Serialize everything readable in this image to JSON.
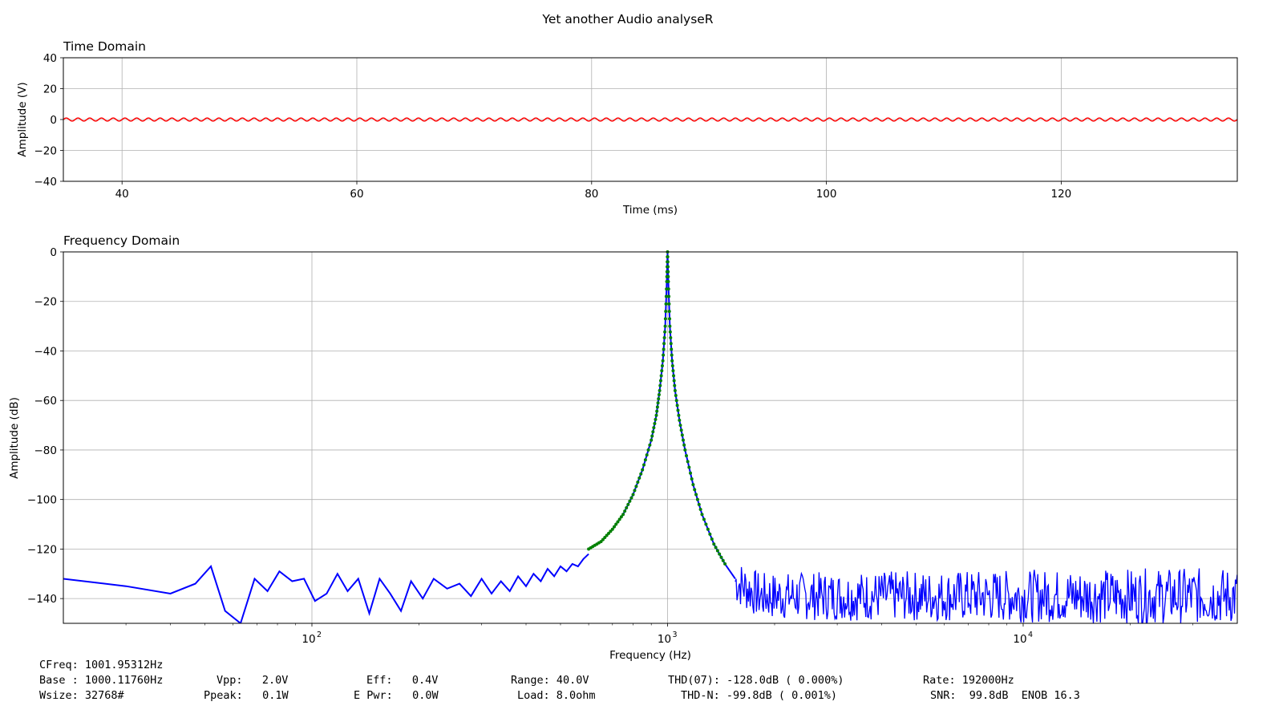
{
  "figure": {
    "title": "Yet another Audio analyseR"
  },
  "chart_data": [
    {
      "type": "line",
      "title": "Time Domain",
      "xlabel": "Time (ms)",
      "ylabel": "Amplitude (V)",
      "xlim": [
        35,
        135
      ],
      "ylim": [
        -40,
        40
      ],
      "xticks": [
        40,
        60,
        80,
        100,
        120
      ],
      "yticks": [
        40,
        20,
        0,
        -20,
        -40
      ],
      "ytick_labels": [
        "40",
        "20",
        "0",
        "−20",
        "−40"
      ],
      "grid": true,
      "series": [
        {
          "color": "#ff0000",
          "signal": "sine",
          "frequency_hz": 1000,
          "amplitude_v": 1.0
        }
      ]
    },
    {
      "type": "line",
      "title": "Frequency Domain",
      "xlabel": "Frequency (Hz)",
      "ylabel": "Amplitude (dB)",
      "xscale": "log",
      "xlim": [
        20,
        40000
      ],
      "ylim": [
        -150,
        0
      ],
      "xticks": [
        100,
        1000,
        10000
      ],
      "xtick_bases": [
        "10",
        "10",
        "10"
      ],
      "xtick_exponents": [
        "2",
        "3",
        "4"
      ],
      "yticks": [
        0,
        -20,
        -40,
        -60,
        -80,
        -100,
        -120,
        -140
      ],
      "ytick_labels": [
        "0",
        "−20",
        "−40",
        "−60",
        "−80",
        "−100",
        "−120",
        "−140"
      ],
      "grid": true,
      "series": [
        {
          "color": "#0000ff",
          "x": [
            20,
            30,
            40,
            47,
            52,
            57,
            63,
            69,
            75,
            81,
            88,
            95,
            102,
            110,
            118,
            126,
            135,
            145,
            155,
            166,
            178,
            190,
            205,
            220,
            240,
            260,
            280,
            300,
            320,
            340,
            360,
            380,
            400,
            420,
            440,
            460,
            480,
            500,
            520,
            540,
            560,
            580,
            600
          ],
          "y": [
            -132,
            -135,
            -138,
            -134,
            -127,
            -145,
            -158,
            -132,
            -137,
            -129,
            -133,
            -132,
            -141,
            -138,
            -130,
            -137,
            -132,
            -146,
            -132,
            -138,
            -145,
            -133,
            -140,
            -132,
            -136,
            -134,
            -139,
            -132,
            -138,
            -133,
            -137,
            -131,
            -135,
            -130,
            -133,
            -128,
            -131,
            -127,
            -129,
            -126,
            -127,
            -124,
            -122
          ]
        },
        {
          "color": "#0000ff",
          "x": [
            600,
            650,
            700,
            750,
            800,
            850,
            900,
            930,
            950,
            970,
            985,
            995,
            1000,
            1005,
            1015,
            1030,
            1050,
            1080,
            1120,
            1180,
            1250,
            1350,
            1450,
            1550
          ],
          "y": [
            -120,
            -117,
            -112,
            -106,
            -98,
            -88,
            -76,
            -66,
            -56,
            -44,
            -30,
            -12,
            0,
            -12,
            -30,
            -44,
            -56,
            -68,
            -80,
            -94,
            -106,
            -118,
            -126,
            -132
          ]
        },
        {
          "color": "#0000ff",
          "style": "noise",
          "x": [
            1550,
            40000
          ],
          "y_mean": -139,
          "y_range": [
            -150,
            -129
          ]
        },
        {
          "color": "#008000",
          "style": "markers",
          "x": [
            600,
            650,
            700,
            750,
            800,
            850,
            900,
            930,
            950,
            970,
            985,
            995,
            1000,
            1005,
            1015,
            1030,
            1050,
            1080,
            1120,
            1180,
            1250,
            1350,
            1450
          ],
          "y": [
            -120,
            -117,
            -112,
            -106,
            -98,
            -88,
            -76,
            -66,
            -56,
            -44,
            -30,
            -12,
            0,
            -12,
            -30,
            -44,
            -56,
            -68,
            -80,
            -94,
            -106,
            -118,
            -126
          ]
        }
      ]
    }
  ],
  "stats": {
    "cfreq": "CFreq: 1001.95312Hz",
    "base": "Base : 1000.11760Hz",
    "wsize": "Wsize: 32768#",
    "vpp": "Vpp:   2.0V",
    "ppeak": "Ppeak:   0.1W",
    "eff": "Eff:   0.4V",
    "epwr": "E Pwr:   0.0W",
    "range": "Range: 40.0V",
    "load": "Load: 8.0ohm",
    "thd": "THD(07): -128.0dB ( 0.000%)",
    "thdn": "THD-N: -99.8dB ( 0.001%)",
    "rate": "Rate: 192000Hz",
    "snr": "SNR:  99.8dB  ENOB 16.3"
  }
}
